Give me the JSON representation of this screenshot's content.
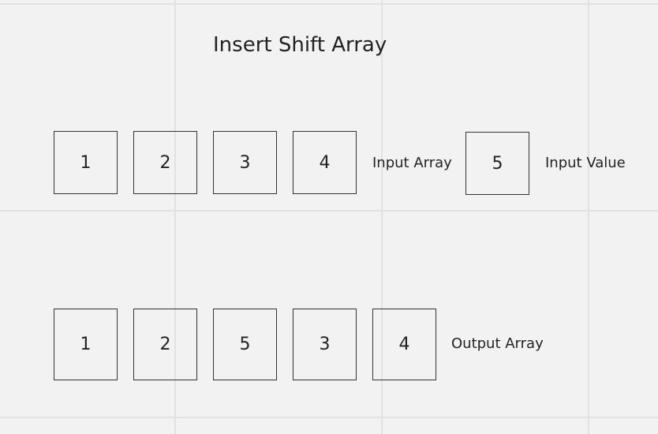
{
  "title": "Insert Shift Array",
  "input_array": {
    "label": "Input Array",
    "values": [
      "1",
      "2",
      "3",
      "4"
    ]
  },
  "input_value": {
    "label": "Input Value",
    "value": "5"
  },
  "output_array": {
    "label": "Output Array",
    "values": [
      "1",
      "2",
      "5",
      "3",
      "4"
    ]
  }
}
